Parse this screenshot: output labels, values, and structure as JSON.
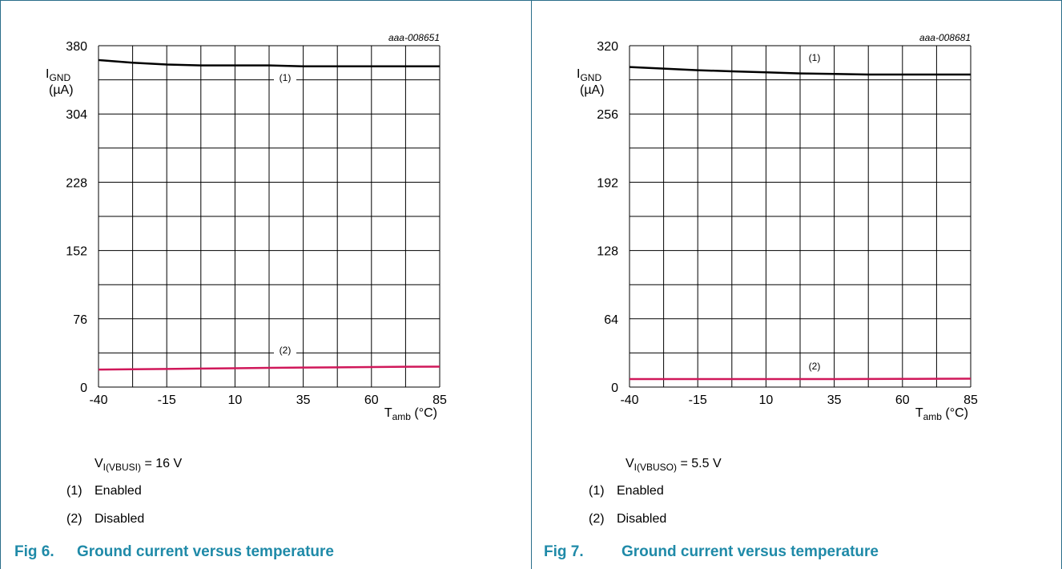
{
  "charts": [
    {
      "code": "aaa-008651",
      "ylabel_main": "I",
      "ylabel_sub": "GND",
      "yunit": "(µA)",
      "xlabel_main": "T",
      "xlabel_sub": "amb",
      "xunit": " (°C)",
      "condition_main": "V",
      "condition_sub": "I(VBUSI)",
      "condition_value": " = 16 V",
      "notes": [
        {
          "num": "(1)",
          "text": "Enabled"
        },
        {
          "num": "(2)",
          "text": "Disabled"
        }
      ],
      "fig_num": "Fig 6.",
      "fig_title": "Ground current versus temperature"
    },
    {
      "code": "aaa-008681",
      "ylabel_main": "I",
      "ylabel_sub": "GND",
      "yunit": "(µA)",
      "xlabel_main": "T",
      "xlabel_sub": "amb",
      "xunit": " (°C)",
      "condition_main": "V",
      "condition_sub": "I(VBUSO)",
      "condition_value": " = 5.5 V",
      "notes": [
        {
          "num": "(1)",
          "text": "Enabled"
        },
        {
          "num": "(2)",
          "text": "Disabled"
        }
      ],
      "fig_num": "Fig 7.",
      "fig_title": "Ground current versus temperature"
    }
  ],
  "chart_data": [
    {
      "type": "line",
      "xlim": [
        -40,
        85
      ],
      "ylim": [
        0,
        380
      ],
      "xticks": [
        -40,
        -15,
        10,
        35,
        60,
        85
      ],
      "yticks": [
        0,
        76,
        152,
        228,
        304,
        380
      ],
      "grid": true,
      "series": [
        {
          "name": "(1)",
          "color": "#000000",
          "x": [
            -40,
            -27.5,
            -15,
            -2.5,
            10,
            22.5,
            35,
            47.5,
            60,
            72.5,
            85
          ],
          "y": [
            364,
            361,
            359,
            358,
            358,
            358,
            357,
            357,
            357,
            357,
            357
          ]
        },
        {
          "name": "(2)",
          "color": "#d0185a",
          "x": [
            -40,
            -27.5,
            -15,
            -2.5,
            10,
            22.5,
            35,
            47.5,
            60,
            72.5,
            85
          ],
          "y": [
            19.5,
            19.8,
            20.2,
            20.6,
            21,
            21.4,
            21.7,
            22,
            22.3,
            22.6,
            22.8
          ]
        }
      ]
    },
    {
      "type": "line",
      "xlim": [
        -40,
        85
      ],
      "ylim": [
        0,
        320
      ],
      "xticks": [
        -40,
        -15,
        10,
        35,
        60,
        85
      ],
      "yticks": [
        0,
        64,
        128,
        192,
        256,
        320
      ],
      "grid": true,
      "series": [
        {
          "name": "(1)",
          "color": "#000000",
          "x": [
            -40,
            -27.5,
            -15,
            -2.5,
            10,
            22.5,
            35,
            47.5,
            60,
            72.5,
            85
          ],
          "y": [
            300,
            298.5,
            297,
            296,
            295,
            294,
            293.5,
            293,
            293,
            293,
            293
          ]
        },
        {
          "name": "(2)",
          "color": "#d0185a",
          "x": [
            -40,
            -27.5,
            -15,
            -2.5,
            10,
            22.5,
            35,
            47.5,
            60,
            72.5,
            85
          ],
          "y": [
            7.5,
            7.5,
            7.5,
            7.5,
            7.5,
            7.5,
            7.5,
            7.6,
            7.7,
            7.8,
            7.9
          ]
        }
      ]
    }
  ]
}
